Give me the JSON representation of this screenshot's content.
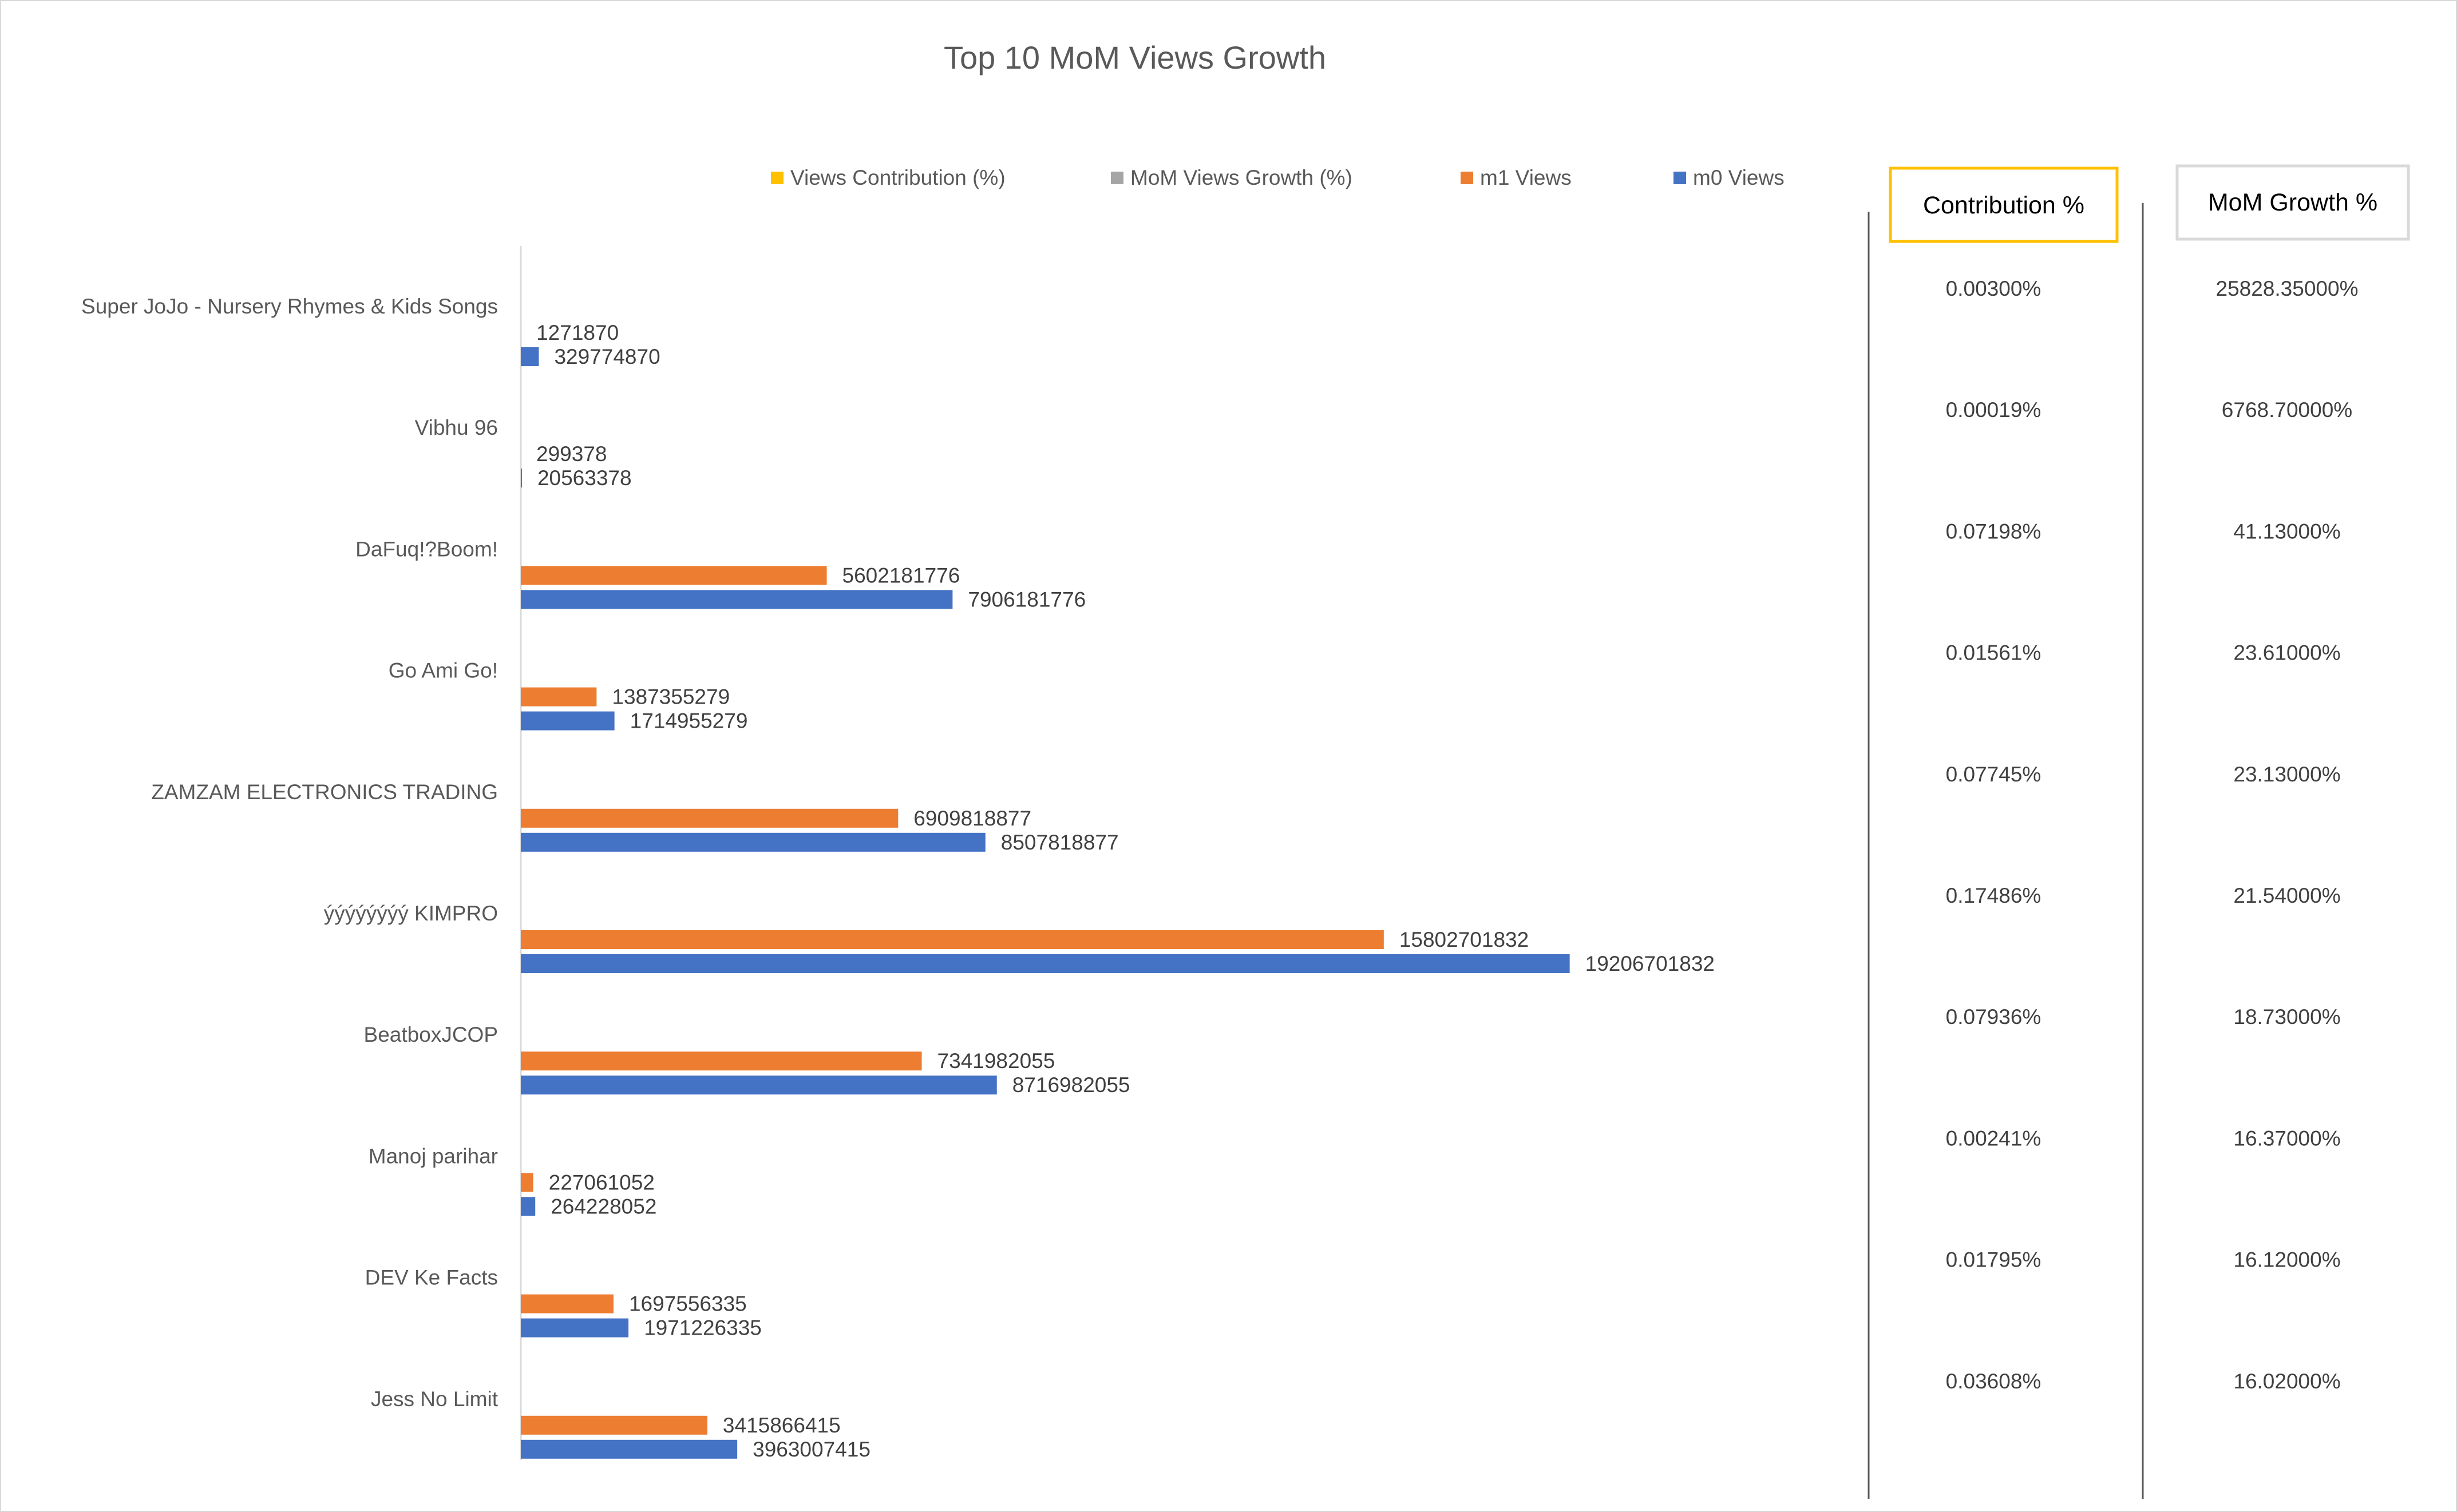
{
  "chart_data": {
    "type": "bar",
    "orientation": "horizontal",
    "title": "Top 10 MoM Views Growth",
    "legend": {
      "placement": "top",
      "entries": [
        {
          "name": "Views Contribution (%)",
          "color": "#FFC000"
        },
        {
          "name": "MoM Views Growth (%)",
          "color": "#A5A5A5"
        },
        {
          "name": "m1 Views",
          "color": "#ED7D31"
        },
        {
          "name": "m0 Views",
          "color": "#4472C4"
        }
      ]
    },
    "categories": [
      "Super JoJo - Nursery Rhymes & Kids Songs",
      "Vibhu 96",
      "DaFuq!?Boom!",
      "Go Ami Go!",
      "ZAMZAM ELECTRONICS TRADING",
      "ýýýýýýýý KIMPRO",
      "BeatboxJCOP",
      "Manoj  parihar",
      "DEV Ke Facts",
      "Jess No Limit"
    ],
    "series": [
      {
        "name": "m1 Views",
        "color": "#ED7D31",
        "values": [
          1271870,
          299378,
          5602181776,
          1387355279,
          6909818877,
          15802701832,
          7341982055,
          227061052,
          1697556335,
          3415866415
        ]
      },
      {
        "name": "m0 Views",
        "color": "#4472C4",
        "values": [
          329774870,
          20563378,
          7906181776,
          1714955279,
          8507818877,
          19206701832,
          8716982055,
          264228052,
          1971226335,
          3963007415
        ]
      }
    ],
    "xlim": [
      0,
      24000000000
    ],
    "grid": false,
    "side_table": {
      "contribution_header": "Contribution %",
      "growth_header": "MoM Growth %",
      "contribution": [
        "0.00300%",
        "0.00019%",
        "0.07198%",
        "0.01561%",
        "0.07745%",
        "0.17486%",
        "0.07936%",
        "0.00241%",
        "0.01795%",
        "0.03608%"
      ],
      "growth": [
        "25828.35000%",
        "6768.70000%",
        "41.13000%",
        "23.61000%",
        "23.13000%",
        "21.54000%",
        "18.73000%",
        "16.37000%",
        "16.12000%",
        "16.02000%"
      ]
    }
  }
}
